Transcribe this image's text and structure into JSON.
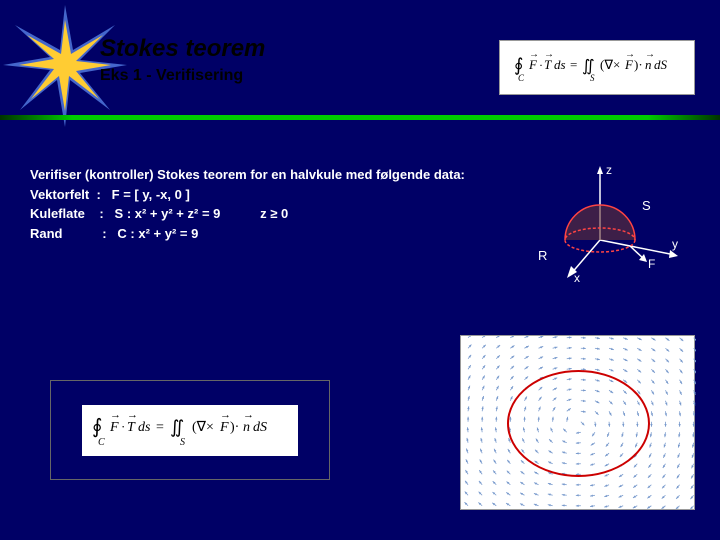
{
  "header": {
    "title": "Stokes teorem",
    "subtitle": "Eks 1   -   Verifisering"
  },
  "formula_top": {
    "latex": "∮_C F·T ds = ∬_S (∇×F)·n dS"
  },
  "content": {
    "line1": "Verifiser (kontroller) Stokes teorem for en halvkule med følgende data:",
    "line2_label": "Vektorfelt",
    "line2_value": "F = [ y, -x, 0 ]",
    "line3_label": "Kuleflate",
    "line3_value": "S : x² + y² + z² = 9",
    "line3_cond": "z ≥ 0",
    "line4_label": "Rand",
    "line4_value": "C : x² + y² = 9"
  },
  "diagram3d": {
    "axis_labels": {
      "x": "x",
      "y": "y",
      "z": "z"
    },
    "surface_label": "S",
    "region_label": "R",
    "force_label": "F",
    "colors": {
      "axes": "#ffffff",
      "dome_stroke": "#ff3333",
      "dome_fill": "#663333",
      "base_ellipse": "#ff3333",
      "text": "#ffffff"
    }
  },
  "vector_field": {
    "type": "vector-field",
    "description": "Rotational field F=[y,-x,0] with circle x²+y²=9",
    "circle_radius": 3,
    "xlim": [
      -5,
      5
    ],
    "ylim": [
      -5,
      5
    ],
    "arrow_color": "#7799cc",
    "circle_color": "#cc0000",
    "background": "#ffffff",
    "grid_spacing": 0.6
  },
  "colors": {
    "background": "#000066",
    "accent_green": "#00cc00",
    "starburst_blue": "#4466cc",
    "starburst_yellow": "#ffcc33",
    "text": "#ffffff"
  }
}
